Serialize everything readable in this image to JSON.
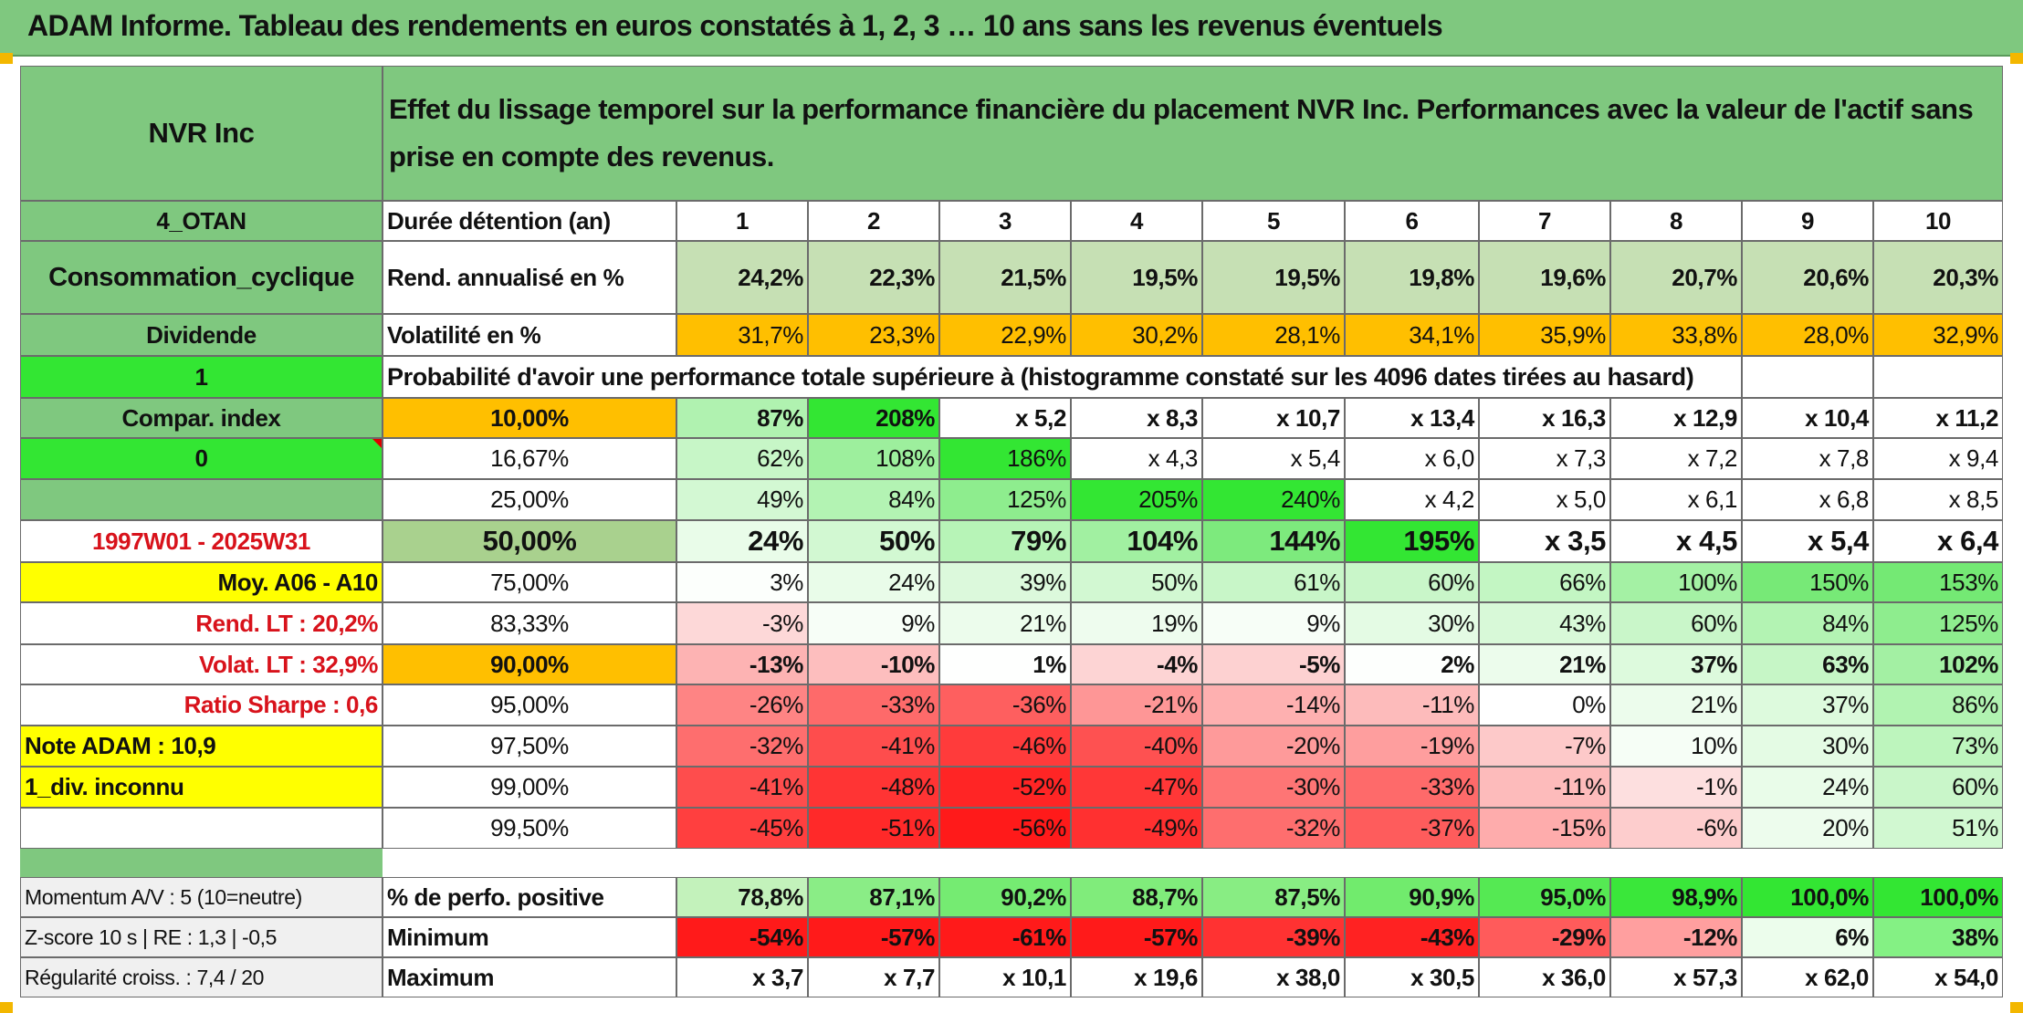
{
  "title": "ADAM Informe. Tableau des rendements en euros constatés à 1, 2, 3 … 10 ans sans les revenus éventuels",
  "left_panel": {
    "company": "NVR Inc",
    "code": "4_OTAN",
    "sector": "Consommation_cyclique",
    "dividend_label": "Dividende",
    "value_1": "1",
    "compar_label": "Compar. index",
    "value_0": "0",
    "period": "1997W01 - 2025W31",
    "moy": "Moy. A06 - A10",
    "rend_lt": "Rend. LT :   20,2%",
    "volat_lt": "Volat. LT :   32,9%",
    "sharpe": "Ratio Sharpe :    0,6",
    "note_adam": "Note ADAM : 10,9",
    "div_unknown": "1_div. inconnu",
    "momentum": "Momentum A/V : 5 (10=neutre)",
    "zscore": "Z-score 10 s | RE : 1,3 | -0,5",
    "regularite": "Régularité croiss. : 7,4 / 20"
  },
  "header_text": "Effet du lissage temporel sur la performance financière du placement NVR Inc. Performances avec la valeur de l'actif sans prise en compte des revenus.",
  "duree_label": "Durée détention (an)",
  "years": [
    "1",
    "2",
    "3",
    "4",
    "5",
    "6",
    "7",
    "8",
    "9",
    "10"
  ],
  "rend_label": "Rend. annualisé en %",
  "rend_values": [
    "24,2%",
    "22,3%",
    "21,5%",
    "19,5%",
    "19,5%",
    "19,8%",
    "19,6%",
    "20,7%",
    "20,6%",
    "20,3%"
  ],
  "vol_label": "Volatilité en %",
  "vol_values": [
    "31,7%",
    "23,3%",
    "22,9%",
    "30,2%",
    "28,1%",
    "34,1%",
    "35,9%",
    "33,8%",
    "28,0%",
    "32,9%"
  ],
  "proba_text": "Probabilité d'avoir une performance totale supérieure à (histogramme constaté sur les 4096 dates tirées au hasard)",
  "percentile_rows": [
    {
      "label": "10,00%",
      "values": [
        "87%",
        "208%",
        "x 5,2",
        "x 8,3",
        "x 10,7",
        "x 13,4",
        "x 16,3",
        "x 12,9",
        "x 10,4",
        "x 11,2"
      ]
    },
    {
      "label": "16,67%",
      "values": [
        "62%",
        "108%",
        "186%",
        "x 4,3",
        "x 5,4",
        "x 6,0",
        "x 7,3",
        "x 7,2",
        "x 7,8",
        "x 9,4"
      ]
    },
    {
      "label": "25,00%",
      "values": [
        "49%",
        "84%",
        "125%",
        "205%",
        "240%",
        "x 4,2",
        "x 5,0",
        "x 6,1",
        "x 6,8",
        "x 8,5"
      ]
    },
    {
      "label": "50,00%",
      "values": [
        "24%",
        "50%",
        "79%",
        "104%",
        "144%",
        "195%",
        "x 3,5",
        "x 4,5",
        "x 5,4",
        "x 6,4"
      ]
    },
    {
      "label": "75,00%",
      "values": [
        "3%",
        "24%",
        "39%",
        "50%",
        "61%",
        "60%",
        "66%",
        "100%",
        "150%",
        "153%"
      ]
    },
    {
      "label": "83,33%",
      "values": [
        "-3%",
        "9%",
        "21%",
        "19%",
        "9%",
        "30%",
        "43%",
        "60%",
        "84%",
        "125%"
      ]
    },
    {
      "label": "90,00%",
      "values": [
        "-13%",
        "-10%",
        "1%",
        "-4%",
        "-5%",
        "2%",
        "21%",
        "37%",
        "63%",
        "102%"
      ]
    },
    {
      "label": "95,00%",
      "values": [
        "-26%",
        "-33%",
        "-36%",
        "-21%",
        "-14%",
        "-11%",
        "0%",
        "21%",
        "37%",
        "86%"
      ]
    },
    {
      "label": "97,50%",
      "values": [
        "-32%",
        "-41%",
        "-46%",
        "-40%",
        "-20%",
        "-19%",
        "-7%",
        "10%",
        "30%",
        "73%"
      ]
    },
    {
      "label": "99,00%",
      "values": [
        "-41%",
        "-48%",
        "-52%",
        "-47%",
        "-30%",
        "-33%",
        "-11%",
        "-1%",
        "24%",
        "60%"
      ]
    },
    {
      "label": "99,50%",
      "values": [
        "-45%",
        "-51%",
        "-56%",
        "-49%",
        "-32%",
        "-37%",
        "-15%",
        "-6%",
        "20%",
        "51%"
      ]
    }
  ],
  "positive_label": "% de perfo. positive",
  "positive_values": [
    "78,8%",
    "87,1%",
    "90,2%",
    "88,7%",
    "87,5%",
    "90,9%",
    "95,0%",
    "98,9%",
    "100,0%",
    "100,0%"
  ],
  "min_label": "Minimum",
  "min_values": [
    "-54%",
    "-57%",
    "-61%",
    "-57%",
    "-39%",
    "-43%",
    "-29%",
    "-12%",
    "6%",
    "38%"
  ],
  "max_label": "Maximum",
  "max_values": [
    "x 3,7",
    "x 7,7",
    "x 10,1",
    "x 19,6",
    "x 38,0",
    "x 30,5",
    "x 36,0",
    "x 57,3",
    "x 62,0",
    "x 54,0"
  ],
  "colors": {
    "header_green": "#7fc87f",
    "bright_green": "#33e633",
    "yellow": "#ffff00",
    "orange": "#ffbf00",
    "deep_red": "#ff1a1a"
  }
}
